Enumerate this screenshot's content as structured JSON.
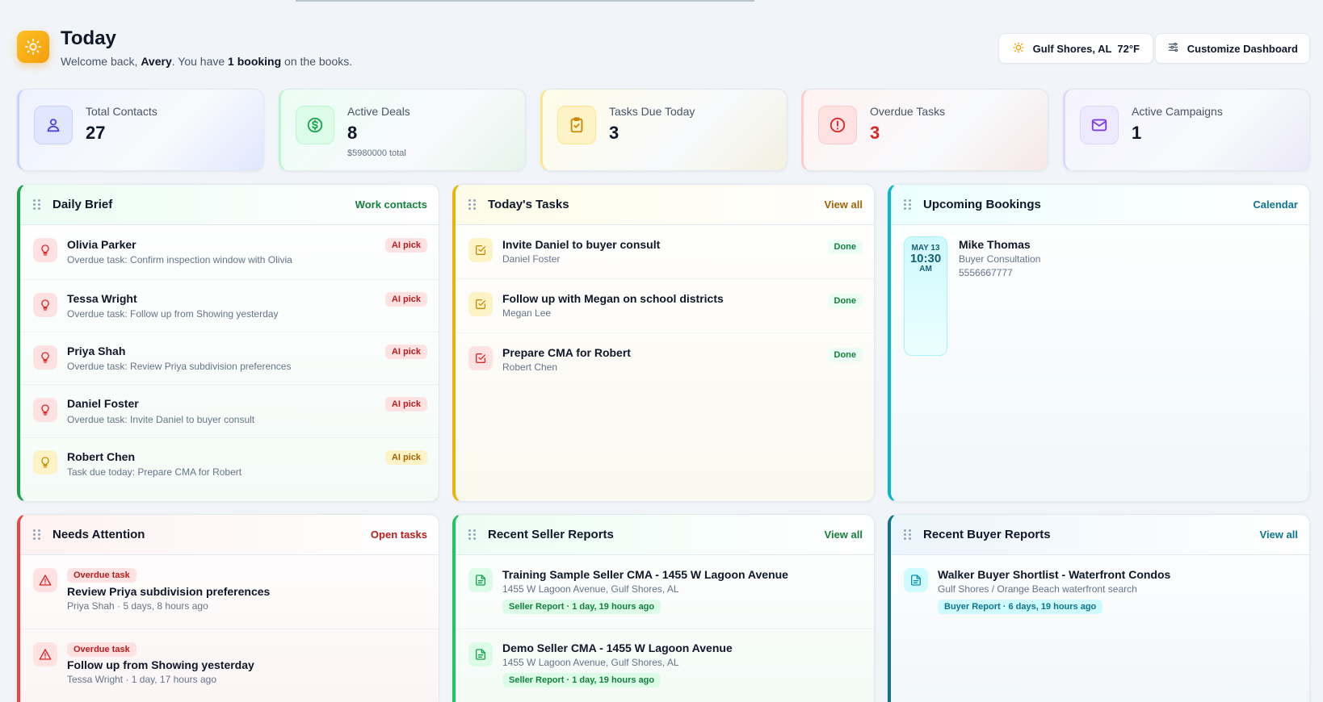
{
  "header": {
    "title": "Today",
    "welcome_prefix": "Welcome back, ",
    "user": "Avery",
    "mid": ". You have ",
    "bookings": "1 booking",
    "suffix": " on the books.",
    "weather": "Gulf Shores, AL  72°F",
    "customize": "Customize Dashboard"
  },
  "stats": [
    {
      "label": "Total Contacts",
      "value": "27",
      "sub": "",
      "icon": "person-icon"
    },
    {
      "label": "Active Deals",
      "value": "8",
      "sub": "$5980000 total",
      "icon": "dollar-icon"
    },
    {
      "label": "Tasks Due Today",
      "value": "3",
      "sub": "",
      "icon": "clipboard-check-icon"
    },
    {
      "label": "Overdue Tasks",
      "value": "3",
      "sub": "",
      "icon": "alert-circle-icon"
    },
    {
      "label": "Active Campaigns",
      "value": "1",
      "sub": "",
      "icon": "mail-icon"
    }
  ],
  "daily_brief": {
    "title": "Daily Brief",
    "link": "Work contacts",
    "items": [
      {
        "name": "Olivia Parker",
        "desc": "Overdue task: Confirm inspection window with Olivia",
        "badge": "AI pick"
      },
      {
        "name": "Tessa Wright",
        "desc": "Overdue task: Follow up from Showing yesterday",
        "badge": "AI pick"
      },
      {
        "name": "Priya Shah",
        "desc": "Overdue task: Review Priya subdivision preferences",
        "badge": "AI pick"
      },
      {
        "name": "Daniel Foster",
        "desc": "Overdue task: Invite Daniel to buyer consult",
        "badge": "AI pick"
      },
      {
        "name": "Robert Chen",
        "desc": "Task due today: Prepare CMA for Robert",
        "badge": "AI pick"
      }
    ]
  },
  "todays_tasks": {
    "title": "Today's Tasks",
    "link": "View all",
    "items": [
      {
        "name": "Invite Daniel to buyer consult",
        "contact": "Daniel Foster",
        "action": "Done"
      },
      {
        "name": "Follow up with Megan on school districts",
        "contact": "Megan Lee",
        "action": "Done"
      },
      {
        "name": "Prepare CMA for Robert",
        "contact": "Robert Chen",
        "action": "Done"
      }
    ]
  },
  "bookings": {
    "title": "Upcoming Bookings",
    "link": "Calendar",
    "items": [
      {
        "month_day": "MAY 13",
        "time": "10:30",
        "ampm": "AM",
        "name": "Mike Thomas",
        "type": "Buyer Consultation",
        "phone": "5556667777"
      }
    ]
  },
  "needs_attention": {
    "title": "Needs Attention",
    "link": "Open tasks",
    "items": [
      {
        "tag": "Overdue task",
        "name": "Review Priya subdivision preferences",
        "meta": "Priya Shah · 5 days, 8 hours ago"
      },
      {
        "tag": "Overdue task",
        "name": "Follow up from Showing yesterday",
        "meta": "Tessa Wright · 1 day, 17 hours ago"
      }
    ]
  },
  "seller_reports": {
    "title": "Recent Seller Reports",
    "link": "View all",
    "items": [
      {
        "name": "Training Sample Seller CMA - 1455 W Lagoon Avenue",
        "address": "1455 W Lagoon Avenue, Gulf Shores, AL",
        "tag": "Seller Report · 1 day, 19 hours ago"
      },
      {
        "name": "Demo Seller CMA - 1455 W Lagoon Avenue",
        "address": "1455 W Lagoon Avenue, Gulf Shores, AL",
        "tag": "Seller Report · 1 day, 19 hours ago"
      }
    ]
  },
  "buyer_reports": {
    "title": "Recent Buyer Reports",
    "link": "View all",
    "items": [
      {
        "name": "Walker Buyer Shortlist - Waterfront Condos",
        "address": "Gulf Shores / Orange Beach waterfront search",
        "tag": "Buyer Report · 6 days, 19 hours ago"
      }
    ]
  },
  "colors": {
    "green": "#16a34a",
    "amber": "#eab308",
    "cyan": "#06b6d4",
    "red": "#ef4444",
    "teal_link": "#0e7490"
  }
}
